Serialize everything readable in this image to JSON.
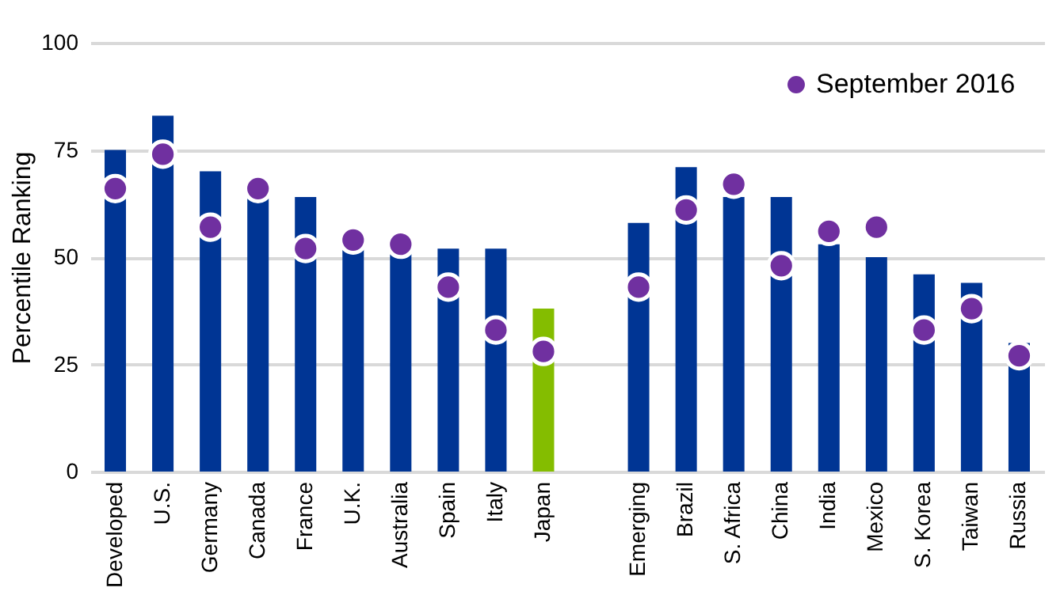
{
  "chart_data": {
    "type": "bar",
    "ylabel": "Percentile Ranking",
    "categories": [
      "Developed",
      "U.S.",
      "Germany",
      "Canada",
      "France",
      "U.K.",
      "Australia",
      "Spain",
      "Italy",
      "Japan",
      null,
      "Emerging",
      "Brazil",
      "S. Africa",
      "China",
      "India",
      "Mexico",
      "S. Korea",
      "Taiwan",
      "Russia"
    ],
    "series": [
      {
        "values": [
          75,
          83,
          70,
          65,
          64,
          52,
          51,
          52,
          52,
          38,
          null,
          58,
          71,
          64,
          64,
          53,
          50,
          46,
          44,
          30
        ],
        "colors": [
          "#003594",
          "#003594",
          "#003594",
          "#003594",
          "#003594",
          "#003594",
          "#003594",
          "#003594",
          "#003594",
          "#84bd00",
          "#003594",
          "#003594",
          "#003594",
          "#003594",
          "#003594",
          "#003594",
          "#003594",
          "#003594",
          "#003594",
          "#003594"
        ]
      },
      {
        "type": "scatter",
        "name": "September 2016",
        "color": "#7030a0",
        "values": [
          66,
          74,
          57,
          66,
          52,
          54,
          53,
          43,
          33,
          28,
          null,
          43,
          61,
          67,
          48,
          56,
          57,
          33,
          38,
          27
        ]
      }
    ],
    "ylim": [
      0,
      100
    ],
    "yticks": [
      0,
      25,
      50,
      75,
      100
    ],
    "grid": "y",
    "legend": "top right",
    "marker": "circle"
  }
}
